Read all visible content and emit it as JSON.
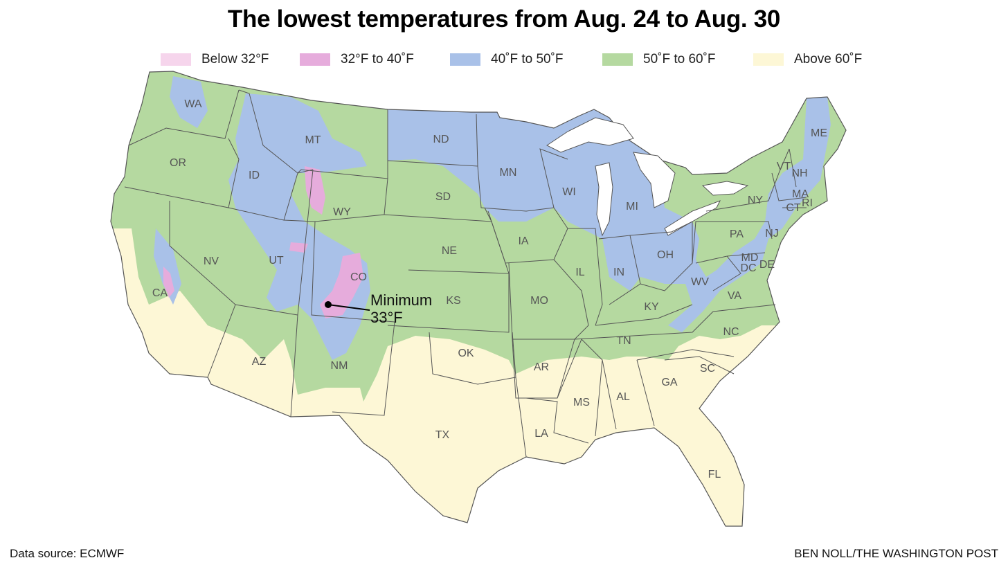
{
  "title": "The lowest temperatures from Aug. 24 to Aug. 30",
  "legend": [
    {
      "label": "Below 32°F",
      "color": "#f6d5ec"
    },
    {
      "label": "32°F to 40˚F",
      "color": "#e6acdc"
    },
    {
      "label": "40˚F to 50˚F",
      "color": "#a9c1e8"
    },
    {
      "label": "50˚F to 60˚F",
      "color": "#b5d9a0"
    },
    {
      "label": "Above 60˚F",
      "color": "#fdf7d6"
    }
  ],
  "annotation": {
    "line1": "Minimum",
    "line2": "33°F"
  },
  "states": [
    "WA",
    "OR",
    "CA",
    "ID",
    "NV",
    "MT",
    "WY",
    "UT",
    "CO",
    "AZ",
    "NM",
    "ND",
    "SD",
    "NE",
    "KS",
    "OK",
    "TX",
    "MN",
    "IA",
    "MO",
    "AR",
    "LA",
    "WI",
    "IL",
    "MI",
    "IN",
    "OH",
    "KY",
    "TN",
    "MS",
    "AL",
    "GA",
    "FL",
    "SC",
    "NC",
    "VA",
    "WV",
    "PA",
    "NY",
    "MD",
    "DE",
    "DC",
    "NJ",
    "VT",
    "NH",
    "ME",
    "MA",
    "CT",
    "RI"
  ],
  "source": "Data source: ECMWF",
  "credit": "BEN NOLL/THE WASHINGTON POST"
}
